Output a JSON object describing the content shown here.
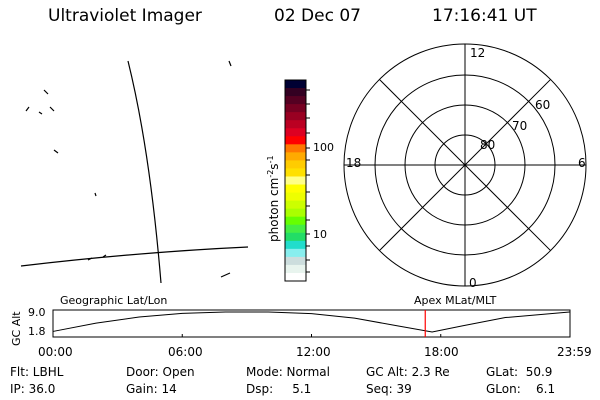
{
  "header": {
    "instrument": "Ultraviolet Imager",
    "date": "02 Dec 07",
    "time": "17:16:41 UT"
  },
  "colorbar": {
    "label": "photon cm",
    "label_exp1": "-2",
    "label_s": "s",
    "label_exp2": "-1",
    "ticks": [
      "100",
      "10"
    ],
    "scale": "log",
    "colors": [
      "#000033",
      "#330022",
      "#550022",
      "#770022",
      "#990022",
      "#bb0022",
      "#dd0022",
      "#ff0000",
      "#ff7700",
      "#ffaa00",
      "#ffcc00",
      "#ffe000",
      "#ffff88",
      "#ffff00",
      "#eeff00",
      "#ccff00",
      "#aaff00",
      "#66ff00",
      "#44ee44",
      "#22dd66",
      "#22ddcc",
      "#88eeee",
      "#ccdddd",
      "#e8f4ee",
      "#ffffff"
    ]
  },
  "polar": {
    "lat_labels": [
      "80",
      "70",
      "60"
    ],
    "mlt_labels": {
      "top": "12",
      "right": "6",
      "left": "18",
      "bottom": "0"
    }
  },
  "chart_data": {
    "type": "line",
    "left_label": "Geographic Lat/Lon",
    "right_label": "Apex MLat/MLT",
    "ylabel": "GC Alt",
    "yticks": [
      "9.0",
      "1.8"
    ],
    "ylim": [
      1.8,
      9.0
    ],
    "xticks": [
      "00:00",
      "06:00",
      "12:00",
      "18:00",
      "23:59"
    ],
    "x_hours": [
      0,
      2,
      4,
      6,
      8,
      10,
      12,
      14,
      16,
      17.6,
      19,
      21,
      23.98
    ],
    "y_alt": [
      2.0,
      5.0,
      7.2,
      8.5,
      9.0,
      9.0,
      8.4,
      6.8,
      4.0,
      1.8,
      4.0,
      7.0,
      9.0
    ],
    "current_time_hours": 17.28,
    "marker_color": "#ff0000"
  },
  "info": {
    "row1": [
      "Flt: LBHL",
      "Door: Open",
      "Mode: Normal",
      "GC Alt: 2.3 Re",
      "GLat:  50.9"
    ],
    "row2": [
      "IP: 36.0",
      "Gain: 14",
      "Dsp:     5.1",
      "Seq: 39",
      "GLon:    6.1"
    ]
  }
}
